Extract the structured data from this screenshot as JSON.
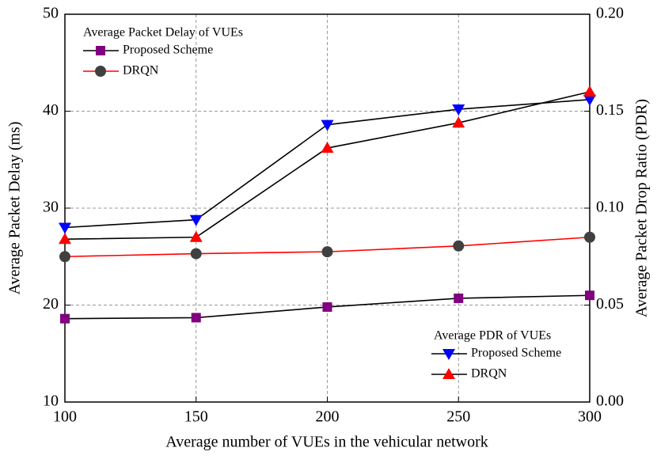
{
  "chart_data": {
    "type": "line",
    "xlabel": "Average number of VUEs in the vehicular network",
    "ylabel": "Average Packet Delay (ms)",
    "y2label": "Average Packet Drop Ratio (PDR)",
    "x": [
      100,
      150,
      200,
      250,
      300
    ],
    "xlim": [
      100,
      300
    ],
    "xticks": [
      100,
      150,
      200,
      250,
      300
    ],
    "ylim": [
      10,
      50
    ],
    "yticks": [
      10,
      20,
      30,
      40,
      50
    ],
    "y2lim": [
      0,
      0.2
    ],
    "y2ticks": [
      {
        "value": 0,
        "label": "0.00"
      },
      0.05,
      {
        "value": 0.1,
        "label": "0.10"
      },
      0.15,
      {
        "value": 0.2,
        "label": "0.20"
      }
    ],
    "grid": true,
    "legend_titles": [
      "Average Packet Delay of VUEs",
      "Average PDR of VUEs"
    ],
    "series": [
      {
        "name": "Proposed Scheme",
        "color": "#800080",
        "line_color": "#000000",
        "marker": "square",
        "axis": "y",
        "values": [
          18.6,
          18.7,
          19.8,
          20.7,
          21.0
        ]
      },
      {
        "name": "DRQN",
        "color": "#404040",
        "line_color": "#ff0000",
        "marker": "circle",
        "axis": "y",
        "values": [
          25.0,
          25.3,
          25.5,
          26.1,
          27.0
        ]
      },
      {
        "name": "Proposed Scheme",
        "color": "#0000ff",
        "line_color": "#000000",
        "marker": "triangle-down",
        "axis": "y2",
        "values": [
          0.09,
          0.094,
          0.143,
          0.151,
          0.156
        ]
      },
      {
        "name": "DRQN",
        "color": "#ff0000",
        "line_color": "#000000",
        "marker": "triangle-up",
        "axis": "y2",
        "values": [
          0.084,
          0.085,
          0.131,
          0.144,
          0.16
        ]
      }
    ]
  }
}
